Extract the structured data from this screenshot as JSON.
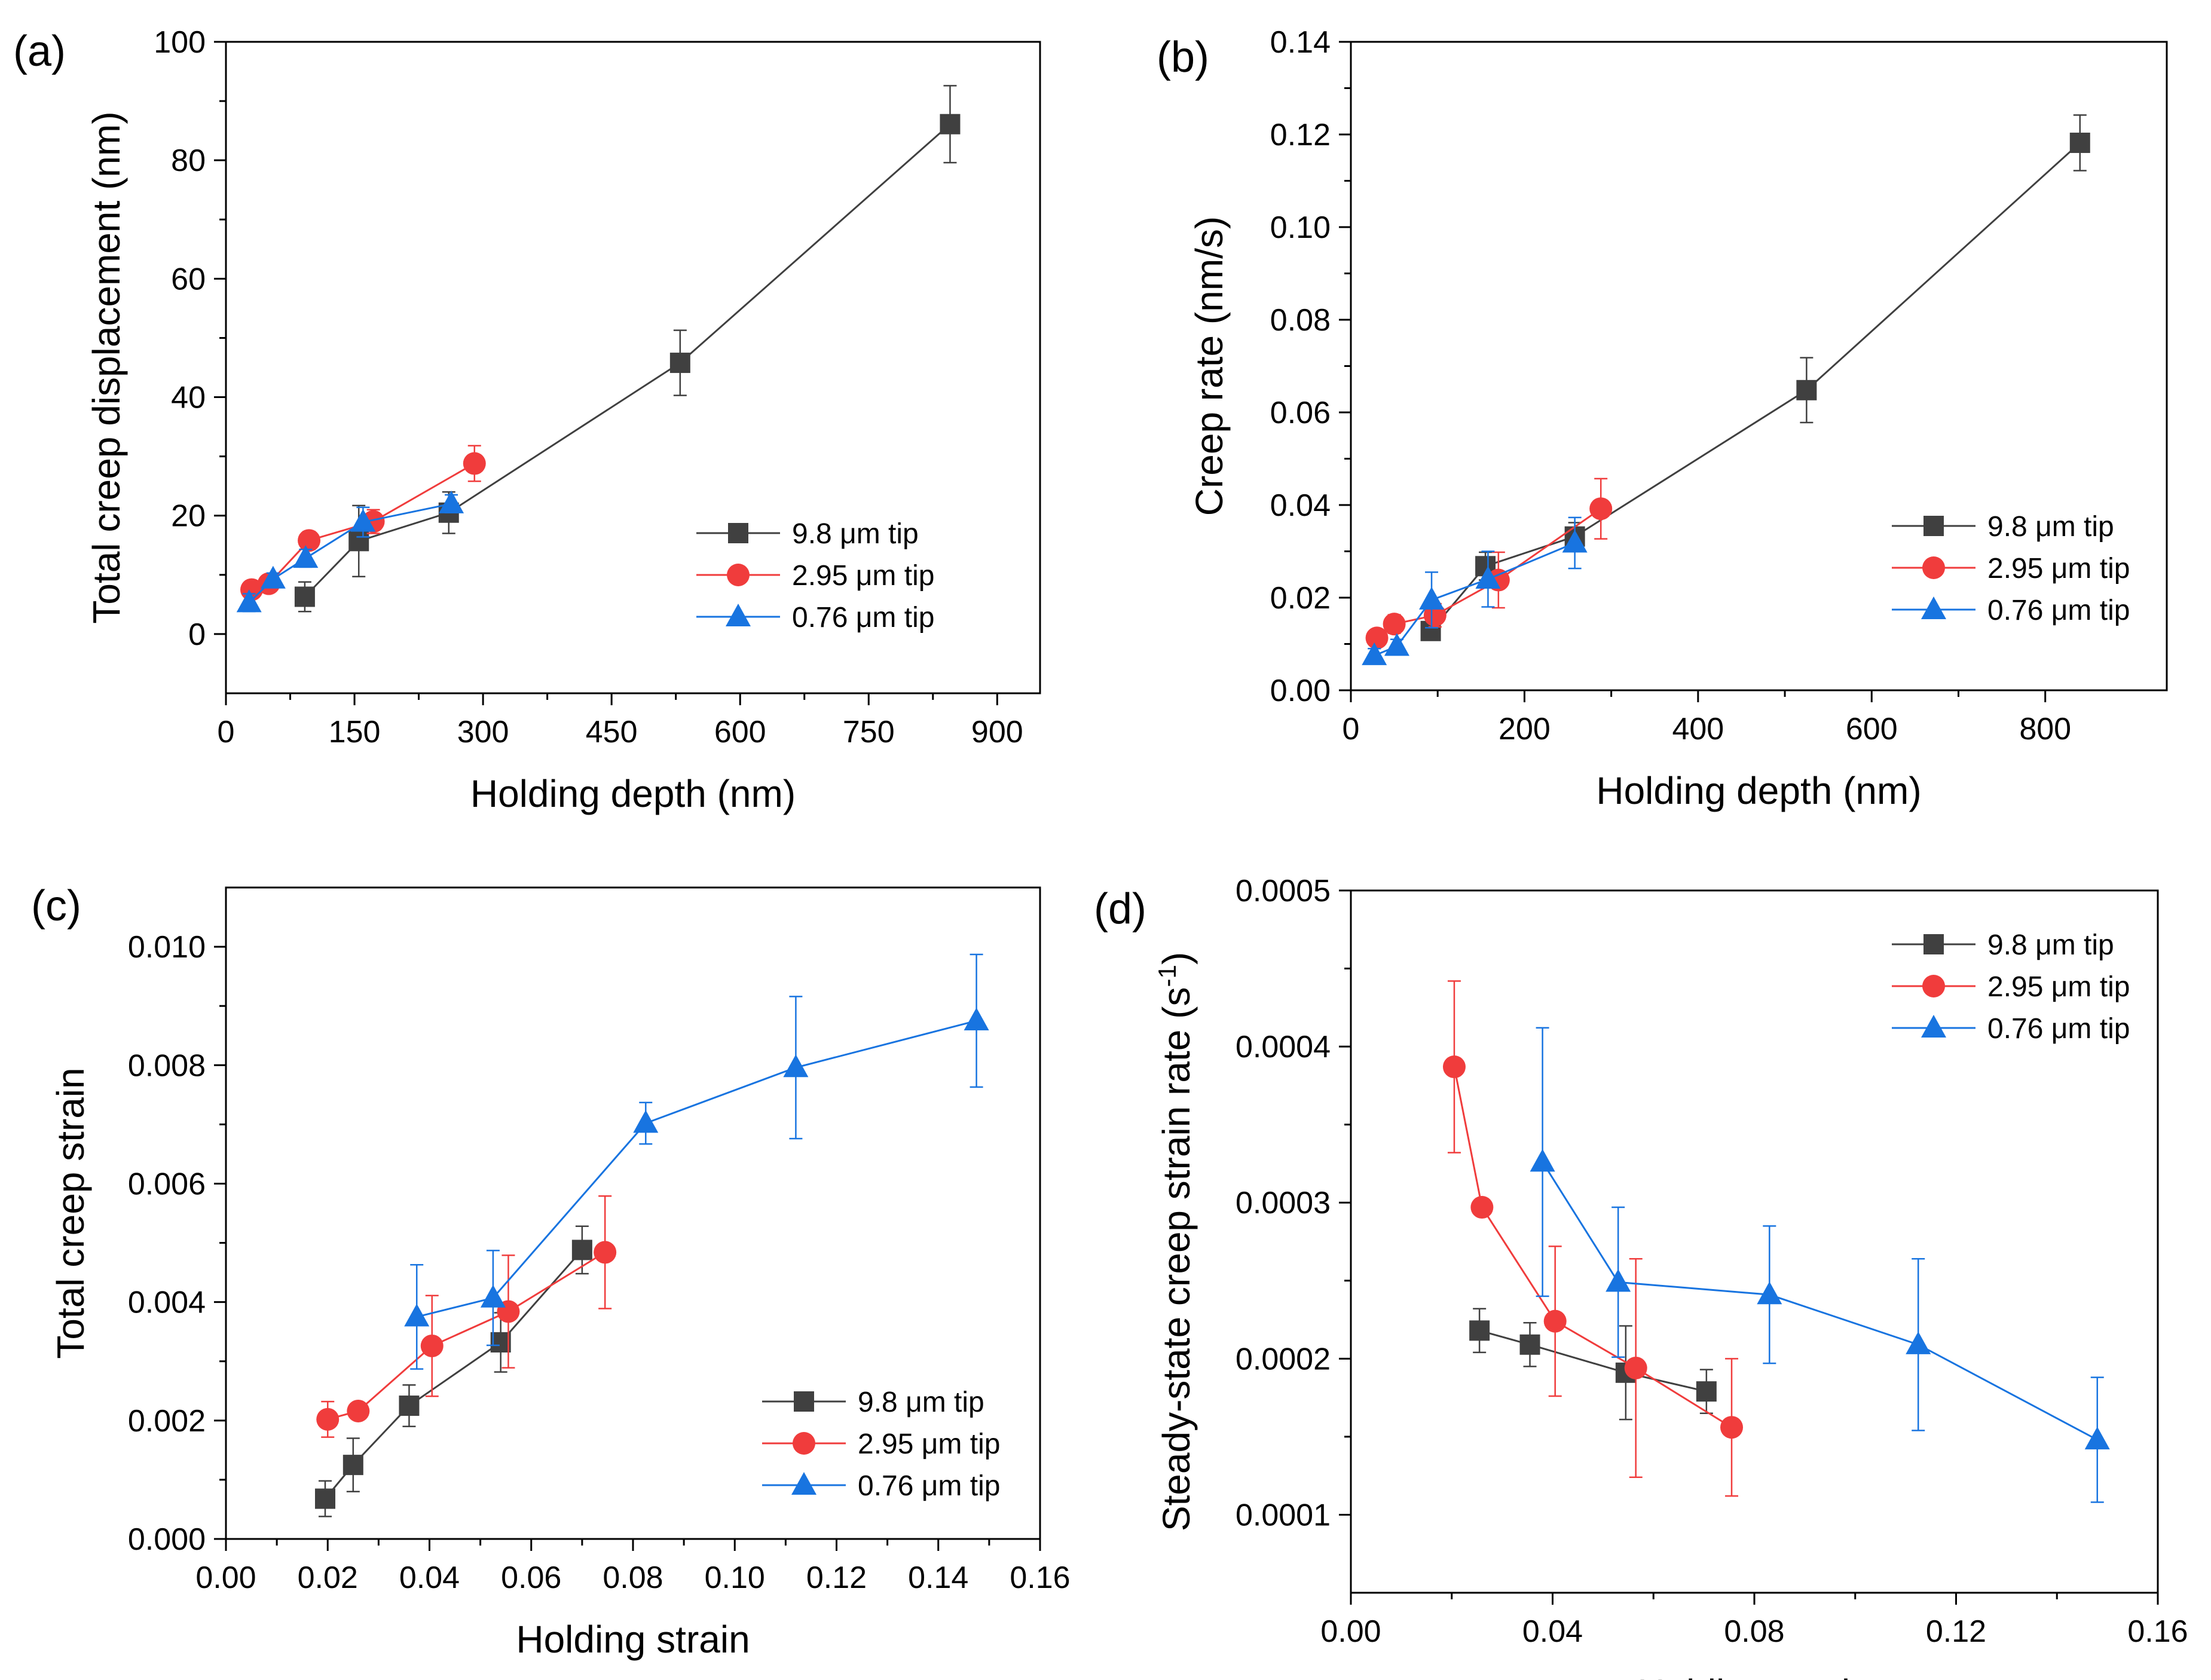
{
  "figure": {
    "panels": [
      "(a)",
      "(b)",
      "(c)",
      "(d)"
    ]
  },
  "colors": {
    "s1": "#404040",
    "s2": "#f03c3c",
    "s3": "#1874e0"
  },
  "chart_data": [
    {
      "id": "a",
      "label": "(a)",
      "type": "line",
      "xlabel": "Holding depth (nm)",
      "ylabel": "Total creep displacement (nm)",
      "xlim": [
        0,
        950
      ],
      "ylim": [
        -10,
        100
      ],
      "xticks": [
        0,
        150,
        300,
        450,
        600,
        750,
        900
      ],
      "xtick_labels": [
        "0",
        "150",
        "300",
        "450",
        "600",
        "750",
        "900"
      ],
      "yticks": [
        0,
        20,
        40,
        60,
        80,
        100
      ],
      "ytick_labels": [
        "0",
        "20",
        "40",
        "60",
        "80",
        "100"
      ],
      "legend_position": "lower-right",
      "series": [
        {
          "name": "9.8 μm tip",
          "marker": "square",
          "x": [
            92,
            155,
            260,
            530,
            845
          ],
          "y": [
            6.3,
            15.7,
            20.5,
            45.8,
            86.1
          ],
          "err": [
            2.5,
            6.0,
            3.5,
            5.5,
            6.5
          ]
        },
        {
          "name": "2.95 μm tip",
          "marker": "circle",
          "x": [
            30,
            50,
            97,
            172,
            290
          ],
          "y": [
            7.5,
            8.5,
            15.8,
            19.0,
            28.8
          ],
          "err": [
            1.0,
            1.0,
            1.5,
            2.0,
            3.0
          ]
        },
        {
          "name": "0.76 μm tip",
          "marker": "triangle",
          "x": [
            27,
            55,
            93,
            160,
            263
          ],
          "y": [
            5.3,
            9.3,
            12.8,
            18.9,
            22.0
          ],
          "err": [
            1.5,
            1.0,
            1.5,
            2.5,
            1.5
          ]
        }
      ]
    },
    {
      "id": "b",
      "label": "(b)",
      "type": "line",
      "xlabel": "Holding depth (nm)",
      "ylabel": "Creep rate (nm/s)",
      "xlim": [
        0,
        940
      ],
      "ylim": [
        0,
        0.14
      ],
      "xticks": [
        0,
        200,
        400,
        600,
        800
      ],
      "xtick_labels": [
        "0",
        "200",
        "400",
        "600",
        "800"
      ],
      "yticks": [
        0,
        0.02,
        0.04,
        0.06,
        0.08,
        0.1,
        0.12,
        0.14
      ],
      "ytick_labels": [
        "0.00",
        "0.02",
        "0.04",
        "0.06",
        "0.08",
        "0.10",
        "0.12",
        "0.14"
      ],
      "legend_position": "lower-right",
      "series": [
        {
          "name": "9.8 μm tip",
          "marker": "square",
          "x": [
            92,
            155,
            258,
            525,
            840
          ],
          "y": [
            0.0128,
            0.0268,
            0.0332,
            0.0648,
            0.1182
          ],
          "err": [
            0.002,
            0.003,
            0.003,
            0.007,
            0.006
          ]
        },
        {
          "name": "2.95 μm tip",
          "marker": "circle",
          "x": [
            30,
            50,
            97,
            170,
            288
          ],
          "y": [
            0.0113,
            0.0143,
            0.0162,
            0.0238,
            0.0392
          ],
          "err": [
            0.0015,
            0.002,
            0.0025,
            0.006,
            0.0065
          ]
        },
        {
          "name": "0.76 μm tip",
          "marker": "triangle",
          "x": [
            27,
            53,
            93,
            158,
            258
          ],
          "y": [
            0.0075,
            0.0095,
            0.0195,
            0.024,
            0.0318
          ],
          "err": [
            0.0015,
            0.0015,
            0.006,
            0.006,
            0.0055
          ]
        }
      ]
    },
    {
      "id": "c",
      "label": "(c)",
      "type": "line",
      "xlabel": "Holding strain",
      "ylabel": "Total creep strain",
      "xlim": [
        0,
        0.16
      ],
      "ylim": [
        0,
        0.011
      ],
      "xticks": [
        0,
        0.02,
        0.04,
        0.06,
        0.08,
        0.1,
        0.12,
        0.14,
        0.16
      ],
      "xtick_labels": [
        "0.00",
        "0.02",
        "0.04",
        "0.06",
        "0.08",
        "0.10",
        "0.12",
        "0.14",
        "0.16"
      ],
      "yticks": [
        0,
        0.002,
        0.004,
        0.006,
        0.008,
        0.01
      ],
      "ytick_labels": [
        "0.000",
        "0.002",
        "0.004",
        "0.006",
        "0.008",
        "0.010"
      ],
      "legend_position": "lower-right",
      "series": [
        {
          "name": "9.8 μm tip",
          "marker": "square",
          "x": [
            0.0195,
            0.025,
            0.036,
            0.054,
            0.07
          ],
          "y": [
            0.00068,
            0.00125,
            0.00225,
            0.00332,
            0.00488
          ],
          "err": [
            0.0003,
            0.00045,
            0.00035,
            0.0005,
            0.0004
          ]
        },
        {
          "name": "2.95 μm tip",
          "marker": "circle",
          "x": [
            0.02,
            0.026,
            0.0405,
            0.0555,
            0.0745
          ],
          "y": [
            0.00202,
            0.00216,
            0.00326,
            0.00384,
            0.00484
          ],
          "err": [
            0.0003,
            0.0001,
            0.00085,
            0.00095,
            0.00095
          ]
        },
        {
          "name": "0.76 μm tip",
          "marker": "triangle",
          "x": [
            0.0375,
            0.0525,
            0.0825,
            0.112,
            0.1475
          ],
          "y": [
            0.00375,
            0.00407,
            0.00702,
            0.00796,
            0.00875
          ],
          "err": [
            0.00088,
            0.0008,
            0.00035,
            0.0012,
            0.00112
          ]
        }
      ]
    },
    {
      "id": "d",
      "label": "(d)",
      "type": "line",
      "xlabel": "Holding strain",
      "ylabel": "Steady-state creep strain rate (s",
      "ylabel_sup": "-1",
      "ylabel_suffix": ")",
      "xlim": [
        0,
        0.16
      ],
      "ylim": [
        5e-05,
        0.0005
      ],
      "xticks": [
        0,
        0.04,
        0.08,
        0.12,
        0.16
      ],
      "xtick_labels": [
        "0.00",
        "0.04",
        "0.08",
        "0.12",
        "0.16"
      ],
      "yticks": [
        0.0001,
        0.0002,
        0.0003,
        0.0004,
        0.0005
      ],
      "ytick_labels": [
        "0.0001",
        "0.0002",
        "0.0003",
        "0.0004",
        "0.0005"
      ],
      "legend_position": "top-right",
      "series": [
        {
          "name": "9.8 μm tip",
          "marker": "square",
          "x": [
            0.0255,
            0.0355,
            0.0545,
            0.0705
          ],
          "y": [
            0.000218,
            0.000209,
            0.000191,
            0.000179
          ],
          "err": [
            1.4e-05,
            1.4e-05,
            3e-05,
            1.4e-05
          ]
        },
        {
          "name": "2.95 μm tip",
          "marker": "circle",
          "x": [
            0.0205,
            0.026,
            0.0405,
            0.0565,
            0.0755
          ],
          "y": [
            0.000387,
            0.000297,
            0.000224,
            0.000194,
            0.000156
          ],
          "err": [
            5.5e-05,
            1e-06,
            4.8e-05,
            7e-05,
            4.4e-05
          ]
        },
        {
          "name": "0.76 μm tip",
          "marker": "triangle",
          "x": [
            0.038,
            0.053,
            0.083,
            0.1125,
            0.148
          ],
          "y": [
            0.000326,
            0.000249,
            0.000241,
            0.000209,
            0.000148
          ],
          "err": [
            8.6e-05,
            4.8e-05,
            4.4e-05,
            5.5e-05,
            4e-05
          ]
        }
      ]
    }
  ]
}
